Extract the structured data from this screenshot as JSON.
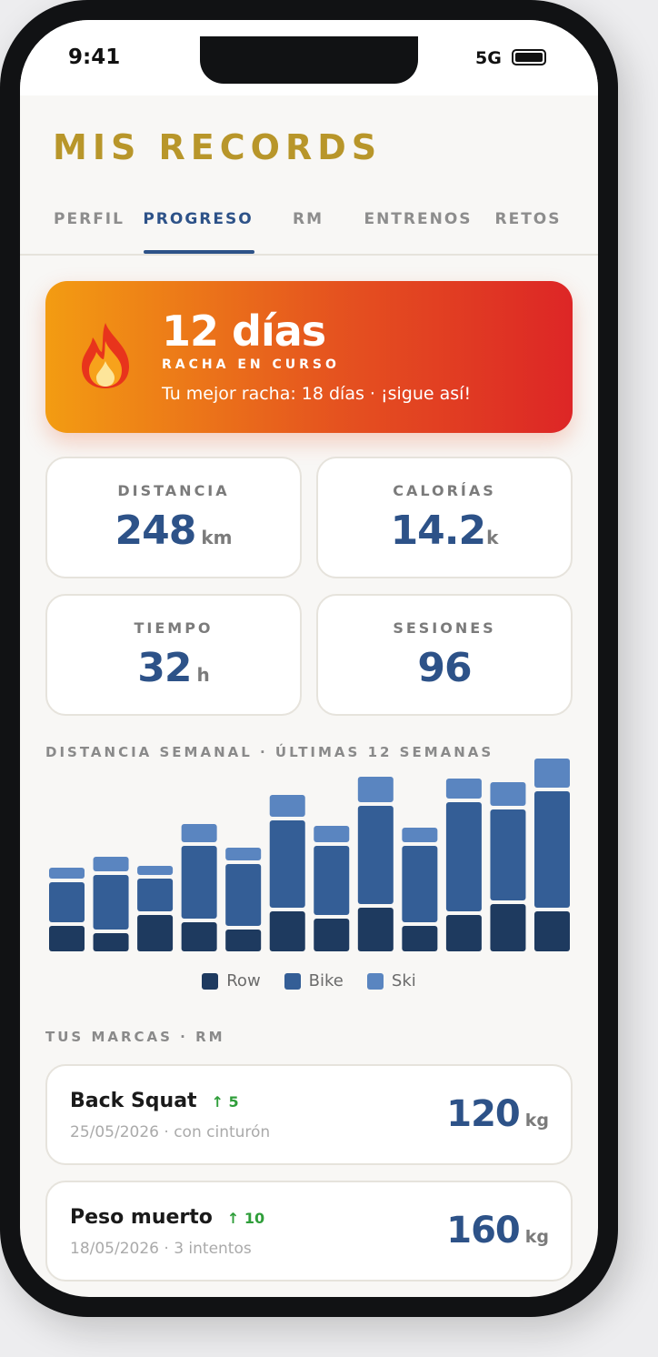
{
  "status_bar": {
    "time": "9:41",
    "network": "5G"
  },
  "header": {
    "title": "MIS RECORDS"
  },
  "tabs": [
    {
      "label": "PERFIL",
      "active": false
    },
    {
      "label": "PROGRESO",
      "active": true
    },
    {
      "label": "RM",
      "active": false
    },
    {
      "label": "ENTRENOS",
      "active": false
    },
    {
      "label": "RETOS",
      "active": false
    }
  ],
  "streak": {
    "value": "12 días",
    "label": "RACHA EN CURSO",
    "best": "Tu mejor racha: 18 días · ¡sigue así!"
  },
  "stats": [
    {
      "label": "DISTANCIA",
      "value": 248,
      "unit": "km"
    },
    {
      "label": "CALORÍAS",
      "value": 14.2,
      "unit": "k"
    },
    {
      "label": "TIEMPO",
      "value": 32,
      "unit": "h"
    },
    {
      "label": "SESIONES",
      "value": 96
    }
  ],
  "chart_data": {
    "type": "stacked_bar",
    "title": "DISTANCIA SEMANAL · ÚLTIMAS 12 SEMANAS",
    "categories": [
      null,
      null,
      null,
      null,
      null,
      null,
      null,
      null,
      null,
      null,
      null,
      null
    ],
    "series": [
      {
        "name": "Row",
        "color": "#1e3a5f",
        "values": [
          14,
          10,
          20,
          16,
          12,
          22,
          18,
          24,
          14,
          20,
          26,
          22
        ]
      },
      {
        "name": "Bike",
        "color": "#345e96",
        "values": [
          22,
          30,
          18,
          40,
          34,
          48,
          38,
          54,
          42,
          60,
          50,
          64
        ]
      },
      {
        "name": "Ski",
        "color": "#5a85c0",
        "values": [
          6,
          8,
          5,
          10,
          7,
          12,
          9,
          14,
          8,
          11,
          13,
          16
        ]
      }
    ]
  },
  "records": {
    "title": "TUS MARCAS · RM",
    "items": [
      {
        "name": "Back Squat",
        "delta": "↑ 5",
        "detail": "25/05/2026 · con cinturón",
        "value": 120,
        "unit": "kg"
      },
      {
        "name": "Peso muerto",
        "delta": "↑ 10",
        "detail": "18/05/2026 · 3 intentos",
        "value": 160,
        "unit": "kg"
      }
    ]
  }
}
